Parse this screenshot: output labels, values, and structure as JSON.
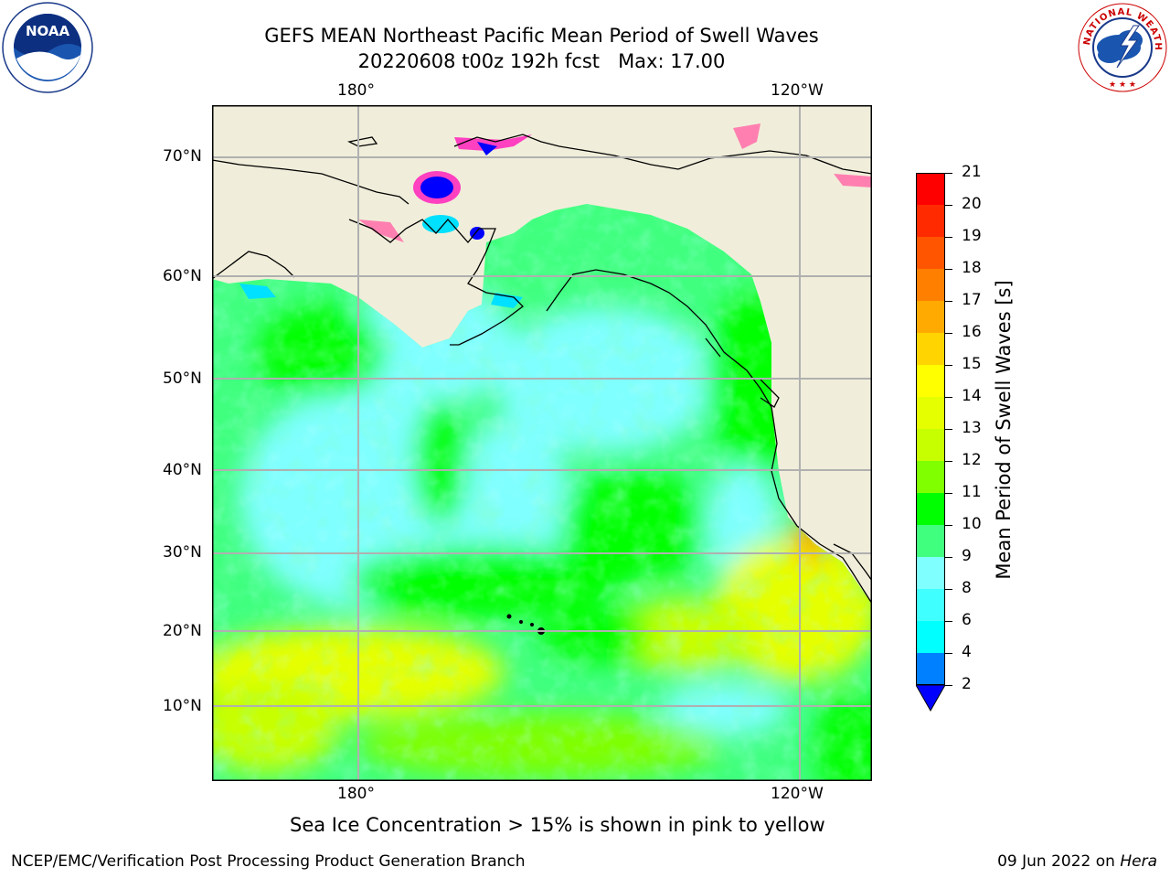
{
  "header": {
    "title_line1": "GEFS MEAN Northeast Pacific Mean Period of Swell Waves",
    "title_line2": "20220608 t00z 192h fcst   Max: 17.00"
  },
  "logos": {
    "left": {
      "icon": "noaa-logo",
      "text": "NOAA"
    },
    "right": {
      "icon": "nws-logo",
      "text": "NATIONAL WEATHER SERVICE"
    }
  },
  "map": {
    "lon_labels": [
      "180°",
      "120°W"
    ],
    "lat_labels": [
      "70°N",
      "60°N",
      "50°N",
      "40°N",
      "30°N",
      "20°N",
      "10°N"
    ],
    "land_color": "#f0eeda",
    "grid_color": "#b0b0b0"
  },
  "colorbar": {
    "label": "Mean Period of Swell Waves [s]",
    "ticks": [
      "21",
      "20",
      "19",
      "18",
      "17",
      "16",
      "15",
      "14",
      "13",
      "12",
      "11",
      "10",
      "9",
      "8",
      "6",
      "4",
      "2"
    ],
    "colors_top_to_bottom": [
      "#ff0000",
      "#ff2a00",
      "#ff5500",
      "#ff7f00",
      "#ffaa00",
      "#ffd400",
      "#ffff00",
      "#e6ff00",
      "#c8ff00",
      "#7fff00",
      "#00ff00",
      "#40ff7f",
      "#7fffff",
      "#40ffff",
      "#00ffff",
      "#00e0ff",
      "#0080ff"
    ],
    "extend_color": "#0000ff"
  },
  "caption": "Sea Ice Concentration > 15% is shown in pink to yellow",
  "footer": {
    "left": "NCEP/EMC/Verification Post Processing Product Generation Branch",
    "right_date": "09 Jun 2022 on ",
    "right_host": "Hera"
  }
}
